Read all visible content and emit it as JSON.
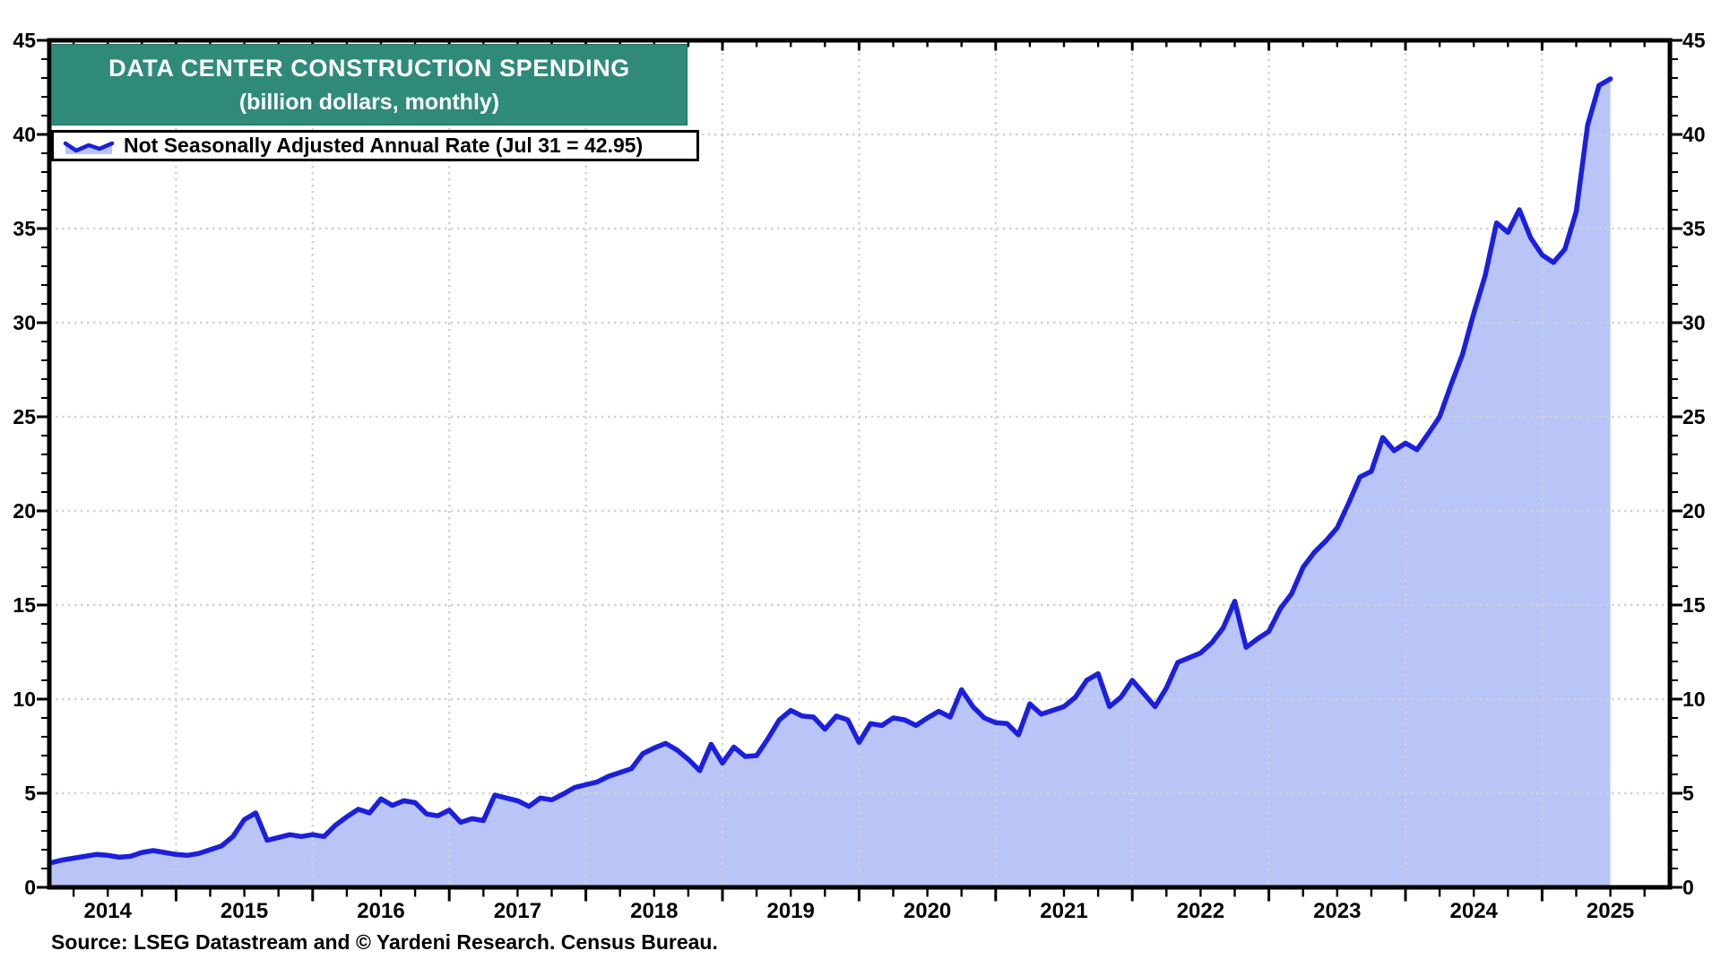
{
  "title": {
    "line1": "DATA CENTER CONSTRUCTION SPENDING",
    "line2": "(billion dollars, monthly)"
  },
  "legend": {
    "label": "Not Seasonally Adjusted Annual Rate (Jul 31 = 42.95)"
  },
  "source_note": "Source: LSEG Datastream and © Yardeni Research. Census Bureau.",
  "colors": {
    "title_bg": "#2F8A7A",
    "title_text": "#FFFFFF",
    "line": "#1B1FDF",
    "fill": "#B9C5F6",
    "grid": "#D2D2D2",
    "frame": "#000000",
    "text": "#000000",
    "background": "#FFFFFF"
  },
  "axes": {
    "y_min": 0,
    "y_max": 45,
    "y_major_step": 5,
    "y_minor_step": 1,
    "y_tick_labels": [
      "0",
      "5",
      "10",
      "15",
      "20",
      "25",
      "30",
      "35",
      "40",
      "45"
    ],
    "dual_y_axis": true,
    "x_year_labels": [
      "2014",
      "2015",
      "2016",
      "2017",
      "2018",
      "2019",
      "2020",
      "2021",
      "2022",
      "2023",
      "2024",
      "2025"
    ],
    "x_minor_tick_interval_months": 3,
    "grid": true
  },
  "chart_data": {
    "type": "area",
    "title": "DATA CENTER CONSTRUCTION SPENDING",
    "subtitle": "(billion dollars, monthly)",
    "ylim": [
      0,
      45
    ],
    "grid": true,
    "legend_position": "top-left",
    "frequency": "monthly",
    "x_start": "2014-02",
    "x_end": "2025-07",
    "series": [
      {
        "name": "Not Seasonally Adjusted Annual Rate",
        "last_point_label": "Jul 31 = 42.95",
        "last_value": 42.95,
        "monthly_values": [
          1.3,
          1.45,
          1.55,
          1.65,
          1.75,
          1.7,
          1.6,
          1.65,
          1.85,
          1.95,
          1.85,
          1.75,
          1.7,
          1.8,
          2.0,
          2.2,
          2.7,
          3.6,
          3.95,
          2.5,
          2.65,
          2.8,
          2.7,
          2.8,
          2.7,
          3.3,
          3.75,
          4.15,
          3.95,
          4.7,
          4.35,
          4.6,
          4.5,
          3.9,
          3.8,
          4.1,
          3.45,
          3.65,
          3.55,
          4.9,
          4.75,
          4.6,
          4.3,
          4.75,
          4.65,
          4.95,
          5.3,
          5.45,
          5.6,
          5.9,
          6.1,
          6.3,
          7.1,
          7.4,
          7.65,
          7.3,
          6.8,
          6.2,
          7.6,
          6.6,
          7.45,
          6.95,
          7.0,
          7.9,
          8.9,
          9.4,
          9.1,
          9.05,
          8.4,
          9.1,
          8.9,
          7.7,
          8.7,
          8.6,
          9.0,
          8.9,
          8.6,
          9.0,
          9.35,
          9.05,
          10.5,
          9.6,
          9.0,
          8.75,
          8.7,
          8.1,
          9.75,
          9.2,
          9.4,
          9.6,
          10.1,
          11.0,
          11.35,
          9.6,
          10.1,
          11.0,
          10.3,
          9.6,
          10.6,
          11.95,
          12.2,
          12.45,
          13.0,
          13.8,
          15.2,
          12.75,
          13.2,
          13.6,
          14.8,
          15.6,
          17.0,
          17.8,
          18.4,
          19.1,
          20.4,
          21.8,
          22.1,
          23.9,
          23.2,
          23.6,
          23.25,
          24.1,
          25.0,
          26.7,
          28.3,
          30.5,
          32.5,
          35.3,
          34.8,
          36.0,
          34.5,
          33.6,
          33.2,
          33.9,
          35.9,
          40.5,
          42.6,
          42.95
        ]
      }
    ]
  }
}
